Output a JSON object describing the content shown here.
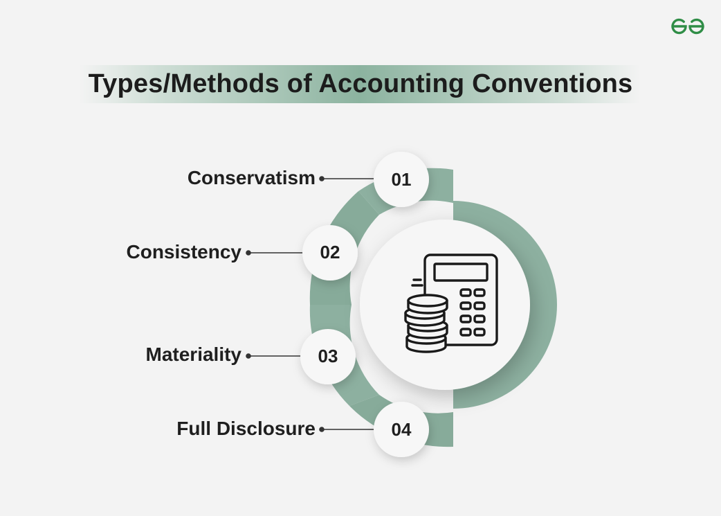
{
  "title": "Types/Methods of Accounting Conventions",
  "brand": {
    "logo_icon": "geeksforgeeks-logo-icon",
    "logo_color": "#2f8d46"
  },
  "colors": {
    "ring": "#8db0a0",
    "ring_dark": "#7ea292",
    "title_band": "#7aa891",
    "text": "#1f1f1f"
  },
  "center_icon": "calculator-coins-icon",
  "items": [
    {
      "number": "01",
      "label": "Conservatism"
    },
    {
      "number": "02",
      "label": "Consistency"
    },
    {
      "number": "03",
      "label": "Materiality"
    },
    {
      "number": "04",
      "label": "Full Disclosure"
    }
  ]
}
